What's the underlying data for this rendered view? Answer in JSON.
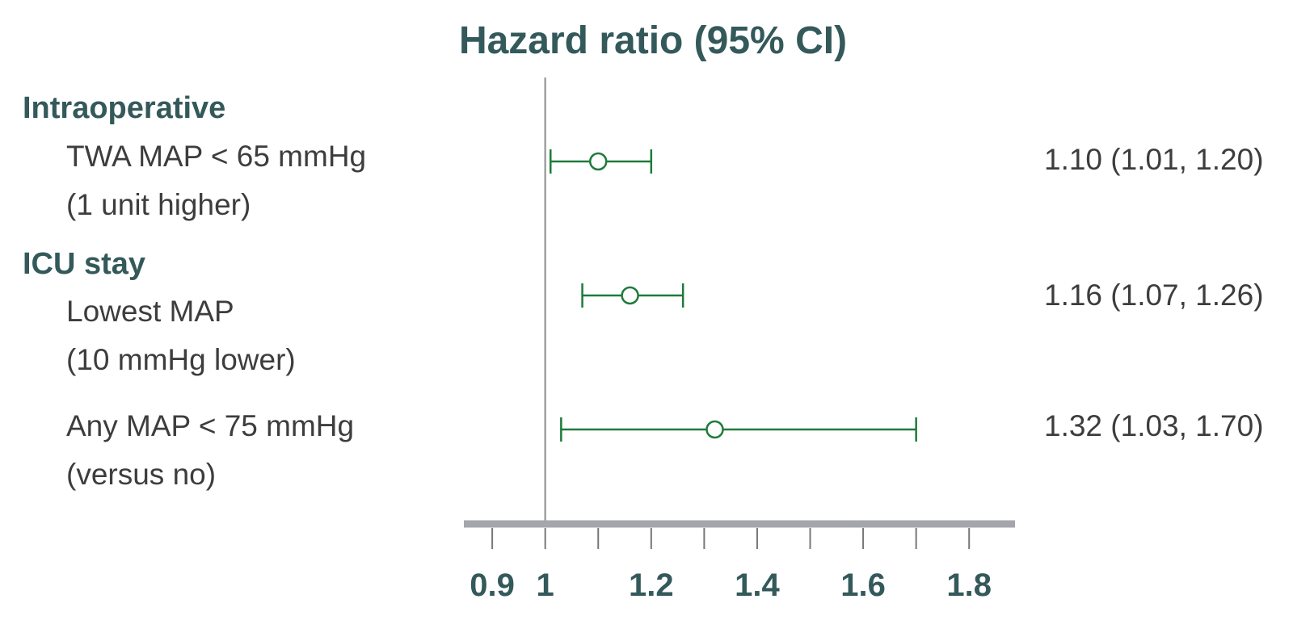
{
  "chart_data": {
    "type": "forest",
    "title": "Hazard ratio (95% CI)",
    "xlim": [
      0.88,
      1.85
    ],
    "reference_line": 1,
    "ticks": [
      {
        "value": 0.9,
        "label": "0.9"
      },
      {
        "value": 1,
        "label": "1"
      },
      {
        "value": 1.1,
        "label": ""
      },
      {
        "value": 1.2,
        "label": "1.2"
      },
      {
        "value": 1.3,
        "label": ""
      },
      {
        "value": 1.4,
        "label": "1.4"
      },
      {
        "value": 1.5,
        "label": ""
      },
      {
        "value": 1.6,
        "label": "1.6"
      },
      {
        "value": 1.7,
        "label": ""
      },
      {
        "value": 1.8,
        "label": "1.8"
      }
    ],
    "sections": [
      {
        "name": "Intraoperative",
        "rows": [
          {
            "label_lines": [
              "TWA MAP < 65 mmHg",
              "(1 unit higher)"
            ],
            "estimate": 1.1,
            "ci_low": 1.01,
            "ci_high": 1.2,
            "value_text": "1.10 (1.01, 1.20)"
          }
        ]
      },
      {
        "name": "ICU stay",
        "rows": [
          {
            "label_lines": [
              "Lowest MAP",
              "(10 mmHg lower)"
            ],
            "estimate": 1.16,
            "ci_low": 1.07,
            "ci_high": 1.26,
            "value_text": "1.16 (1.07, 1.26)"
          },
          {
            "label_lines": [
              "Any MAP < 75 mmHg",
              "(versus no)"
            ],
            "estimate": 1.32,
            "ci_low": 1.03,
            "ci_high": 1.7,
            "value_text": "1.32 (1.03, 1.70)"
          }
        ]
      }
    ],
    "colors": {
      "title": "#34595a",
      "label": "#3d3d3d",
      "ci": "#1e7b3a",
      "axis": "#a4a6ab",
      "reference": "#a0a0a0"
    }
  }
}
